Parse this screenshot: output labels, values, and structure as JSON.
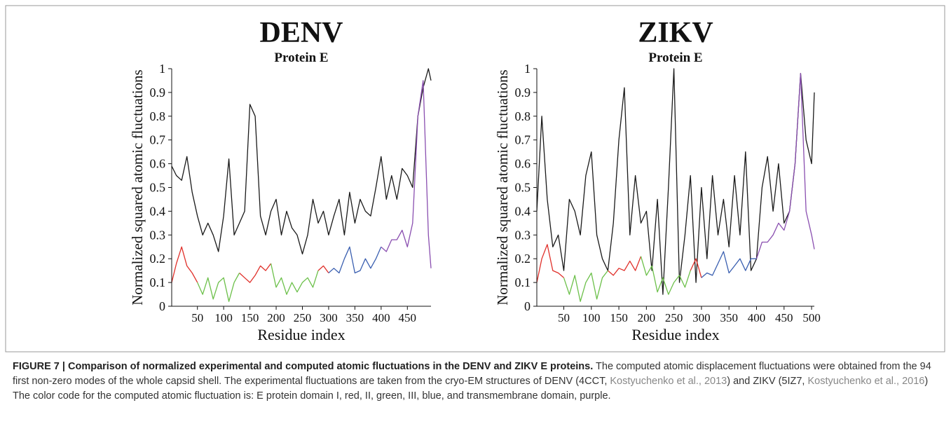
{
  "chart_data": [
    {
      "type": "line",
      "title": "DENV",
      "subtitle": "Protein E",
      "x_label": "Residue index",
      "y_label": "Normalized squared atomic fluctuations",
      "x": [
        1,
        10,
        20,
        30,
        40,
        50,
        60,
        70,
        80,
        90,
        100,
        110,
        120,
        130,
        140,
        150,
        160,
        170,
        180,
        190,
        200,
        210,
        220,
        230,
        240,
        250,
        260,
        270,
        280,
        290,
        300,
        310,
        320,
        330,
        340,
        350,
        360,
        370,
        380,
        390,
        400,
        410,
        420,
        430,
        440,
        450,
        460,
        470,
        480,
        490,
        495
      ],
      "xlim": [
        1,
        495
      ],
      "xticks": [
        50,
        100,
        150,
        200,
        250,
        300,
        350,
        400,
        450
      ],
      "ylim": [
        0,
        1
      ],
      "yticks": [
        0,
        0.1,
        0.2,
        0.3,
        0.4,
        0.5,
        0.6,
        0.7,
        0.8,
        0.9,
        1
      ],
      "series": [
        {
          "color": "#1a1a1a",
          "values": [
            0.59,
            0.55,
            0.53,
            0.63,
            0.48,
            0.38,
            0.3,
            0.35,
            0.3,
            0.23,
            0.38,
            0.62,
            0.3,
            0.35,
            0.4,
            0.85,
            0.8,
            0.38,
            0.3,
            0.4,
            0.45,
            0.3,
            0.4,
            0.33,
            0.3,
            0.22,
            0.3,
            0.45,
            0.35,
            0.4,
            0.3,
            0.38,
            0.45,
            0.3,
            0.48,
            0.35,
            0.45,
            0.4,
            0.38,
            0.5,
            0.63,
            0.45,
            0.55,
            0.45,
            0.58,
            0.55,
            0.5,
            0.8,
            0.92,
            1.0,
            0.95
          ]
        },
        {
          "color": "#e0302a",
          "values": [
            0.1,
            0.18,
            0.25,
            0.17,
            0.14,
            0.1,
            null,
            null,
            null,
            null,
            null,
            null,
            null,
            0.14,
            0.12,
            0.1,
            0.13,
            0.17,
            0.15,
            0.18,
            null,
            null,
            null,
            null,
            null,
            null,
            null,
            null,
            0.15,
            0.17,
            0.14,
            null,
            null,
            null,
            null,
            null,
            null,
            null,
            null,
            null,
            null,
            null,
            null,
            null,
            null,
            null,
            null,
            null,
            null,
            null,
            null
          ]
        },
        {
          "color": "#6cc04a",
          "values": [
            null,
            null,
            null,
            null,
            null,
            0.1,
            0.05,
            0.12,
            0.03,
            0.1,
            0.12,
            0.02,
            0.1,
            0.14,
            null,
            null,
            null,
            null,
            null,
            0.18,
            0.08,
            0.12,
            0.05,
            0.1,
            0.06,
            0.1,
            0.12,
            0.08,
            0.15,
            null,
            null,
            null,
            null,
            null,
            null,
            null,
            null,
            null,
            null,
            null,
            null,
            null,
            null,
            null,
            null,
            null,
            null,
            null,
            null,
            null,
            null
          ]
        },
        {
          "color": "#3a5fb0",
          "values": [
            null,
            null,
            null,
            null,
            null,
            null,
            null,
            null,
            null,
            null,
            null,
            null,
            null,
            null,
            null,
            null,
            null,
            null,
            null,
            null,
            null,
            null,
            null,
            null,
            null,
            null,
            null,
            null,
            null,
            null,
            0.14,
            0.16,
            0.14,
            0.2,
            0.25,
            0.14,
            0.15,
            0.2,
            0.16,
            0.2,
            0.25,
            null,
            null,
            null,
            null,
            null,
            null,
            null,
            null,
            null,
            null
          ]
        },
        {
          "color": "#8a4fb0",
          "values": [
            null,
            null,
            null,
            null,
            null,
            null,
            null,
            null,
            null,
            null,
            null,
            null,
            null,
            null,
            null,
            null,
            null,
            null,
            null,
            null,
            null,
            null,
            null,
            null,
            null,
            null,
            null,
            null,
            null,
            null,
            null,
            null,
            null,
            null,
            null,
            null,
            null,
            null,
            null,
            null,
            0.25,
            0.23,
            0.28,
            0.28,
            0.32,
            0.25,
            0.35,
            0.8,
            0.95,
            0.3,
            0.16
          ]
        }
      ]
    },
    {
      "type": "line",
      "title": "ZIKV",
      "subtitle": "Protein E",
      "x_label": "Residue index",
      "y_label": "Normalized squared atomic fluctuations",
      "x": [
        1,
        10,
        20,
        30,
        40,
        50,
        60,
        70,
        80,
        90,
        100,
        110,
        120,
        130,
        140,
        150,
        160,
        170,
        180,
        190,
        200,
        210,
        220,
        230,
        240,
        250,
        260,
        270,
        280,
        290,
        300,
        310,
        320,
        330,
        340,
        350,
        360,
        370,
        380,
        390,
        400,
        410,
        420,
        430,
        440,
        450,
        460,
        470,
        480,
        490,
        500,
        505
      ],
      "xlim": [
        1,
        505
      ],
      "xticks": [
        50,
        100,
        150,
        200,
        250,
        300,
        350,
        400,
        450,
        500
      ],
      "ylim": [
        0,
        1
      ],
      "yticks": [
        0,
        0.1,
        0.2,
        0.3,
        0.4,
        0.5,
        0.6,
        0.7,
        0.8,
        0.9,
        1
      ],
      "series": [
        {
          "color": "#1a1a1a",
          "values": [
            0.4,
            0.8,
            0.45,
            0.25,
            0.3,
            0.15,
            0.45,
            0.4,
            0.3,
            0.55,
            0.65,
            0.3,
            0.2,
            0.15,
            0.35,
            0.7,
            0.92,
            0.3,
            0.55,
            0.35,
            0.4,
            0.15,
            0.45,
            0.05,
            0.5,
            1.0,
            0.1,
            0.3,
            0.55,
            0.1,
            0.5,
            0.2,
            0.55,
            0.3,
            0.45,
            0.25,
            0.55,
            0.3,
            0.65,
            0.15,
            0.2,
            0.5,
            0.63,
            0.4,
            0.6,
            0.35,
            0.4,
            0.6,
            0.98,
            0.7,
            0.6,
            0.9
          ]
        },
        {
          "color": "#e0302a",
          "values": [
            0.1,
            0.2,
            0.26,
            0.15,
            0.14,
            0.12,
            null,
            null,
            null,
            null,
            null,
            null,
            null,
            0.15,
            0.13,
            0.16,
            0.15,
            0.19,
            0.15,
            0.21,
            null,
            null,
            null,
            null,
            null,
            null,
            null,
            null,
            0.15,
            0.2,
            0.12,
            null,
            null,
            null,
            null,
            null,
            null,
            null,
            null,
            null,
            null,
            null,
            null,
            null,
            null,
            null,
            null,
            null,
            null,
            null,
            null,
            null
          ]
        },
        {
          "color": "#6cc04a",
          "values": [
            null,
            null,
            null,
            null,
            null,
            0.12,
            0.05,
            0.13,
            0.02,
            0.1,
            0.14,
            0.03,
            0.12,
            0.15,
            null,
            null,
            null,
            null,
            null,
            0.21,
            0.13,
            0.17,
            0.06,
            0.12,
            0.05,
            0.1,
            0.13,
            0.08,
            0.15,
            null,
            null,
            null,
            null,
            null,
            null,
            null,
            null,
            null,
            null,
            null,
            null,
            null,
            null,
            null,
            null,
            null,
            null,
            null,
            null,
            null,
            null,
            null
          ]
        },
        {
          "color": "#3a5fb0",
          "values": [
            null,
            null,
            null,
            null,
            null,
            null,
            null,
            null,
            null,
            null,
            null,
            null,
            null,
            null,
            null,
            null,
            null,
            null,
            null,
            null,
            null,
            null,
            null,
            null,
            null,
            null,
            null,
            null,
            null,
            null,
            0.12,
            0.14,
            0.13,
            0.18,
            0.23,
            0.14,
            0.17,
            0.2,
            0.15,
            0.2,
            0.2,
            null,
            null,
            null,
            null,
            null,
            null,
            null,
            null,
            null,
            null,
            null
          ]
        },
        {
          "color": "#8a4fb0",
          "values": [
            null,
            null,
            null,
            null,
            null,
            null,
            null,
            null,
            null,
            null,
            null,
            null,
            null,
            null,
            null,
            null,
            null,
            null,
            null,
            null,
            null,
            null,
            null,
            null,
            null,
            null,
            null,
            null,
            null,
            null,
            null,
            null,
            null,
            null,
            null,
            null,
            null,
            null,
            null,
            null,
            0.2,
            0.27,
            0.27,
            0.3,
            0.35,
            0.32,
            0.4,
            0.6,
            0.98,
            0.4,
            0.3,
            0.24
          ]
        }
      ]
    }
  ],
  "caption": {
    "label": "FIGURE 7 | Comparison of normalized experimental and computed atomic fluctuations in the DENV and ZIKV E proteins.",
    "parts": [
      " The computed atomic displacement fluctuations were obtained from the 94 first non-zero modes of the whole capsid shell. The experimental fluctuations are taken from the cryo-EM structures of DENV (4CCT, ",
      "Kostyuchenko et al., 2013",
      ") and ZIKV (5IZ7, ",
      "Kostyuchenko et al., 2016",
      ") The color code for the computed atomic fluctuation is: E protein domain I, red, II, green, III, blue, and transmembrane domain, purple."
    ]
  }
}
